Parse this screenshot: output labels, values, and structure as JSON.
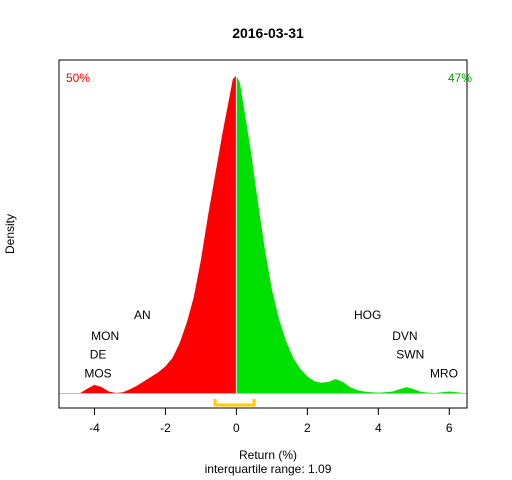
{
  "chart_data": {
    "type": "area",
    "title": "2016-03-31",
    "xlabel": "Return (%)",
    "ylabel": "Density",
    "subtitle": "interquartile range: 1.09",
    "xlim": [
      -5,
      6.5
    ],
    "x_ticks": [
      -4,
      -2,
      0,
      2,
      4,
      6
    ],
    "split_at": 0,
    "left_percent": "50%",
    "right_percent": "47%",
    "colors": {
      "negative": "#ff0000",
      "positive": "#00e000",
      "left_percent": "#ff0000",
      "right_percent": "#00a000",
      "iqr_bracket": "#ffcc00",
      "divider": "#ffffff",
      "baseline": "#bebebe"
    },
    "iqr": [
      -0.6,
      0.5
    ],
    "density": {
      "x": [
        -4.4,
        -4.2,
        -4.0,
        -3.8,
        -3.6,
        -3.4,
        -3.2,
        -3.0,
        -2.8,
        -2.6,
        -2.4,
        -2.2,
        -2.0,
        -1.8,
        -1.6,
        -1.4,
        -1.2,
        -1.0,
        -0.8,
        -0.6,
        -0.4,
        -0.2,
        -0.1,
        0.0,
        0.1,
        0.2,
        0.4,
        0.6,
        0.8,
        1.0,
        1.2,
        1.4,
        1.6,
        1.8,
        2.0,
        2.2,
        2.4,
        2.6,
        2.8,
        3.0,
        3.2,
        3.4,
        3.6,
        3.8,
        4.0,
        4.2,
        4.4,
        4.6,
        4.8,
        5.0,
        5.2,
        5.4,
        5.6,
        5.8,
        6.0,
        6.2,
        6.4
      ],
      "y": [
        0.0,
        0.012,
        0.022,
        0.016,
        0.004,
        0.0,
        0.002,
        0.01,
        0.02,
        0.032,
        0.044,
        0.056,
        0.072,
        0.095,
        0.135,
        0.19,
        0.26,
        0.36,
        0.48,
        0.59,
        0.7,
        0.8,
        0.85,
        0.86,
        0.84,
        0.78,
        0.66,
        0.52,
        0.39,
        0.28,
        0.2,
        0.14,
        0.095,
        0.065,
        0.045,
        0.032,
        0.028,
        0.03,
        0.038,
        0.03,
        0.016,
        0.008,
        0.004,
        0.002,
        0.001,
        0.002,
        0.004,
        0.01,
        0.016,
        0.01,
        0.003,
        0.001,
        0.0,
        0.002,
        0.004,
        0.002,
        0.0
      ],
      "ymax": 0.875
    },
    "annotations": [
      {
        "text": "MOS",
        "x": -3.9,
        "y": 0.042
      },
      {
        "text": "DE",
        "x": -3.9,
        "y": 0.093
      },
      {
        "text": "MON",
        "x": -3.7,
        "y": 0.144
      },
      {
        "text": "AN",
        "x": -2.65,
        "y": 0.2
      },
      {
        "text": "HOG",
        "x": 3.7,
        "y": 0.2
      },
      {
        "text": "DVN",
        "x": 4.75,
        "y": 0.144
      },
      {
        "text": "SWN",
        "x": 4.9,
        "y": 0.093
      },
      {
        "text": "MRO",
        "x": 5.85,
        "y": 0.042
      }
    ]
  }
}
